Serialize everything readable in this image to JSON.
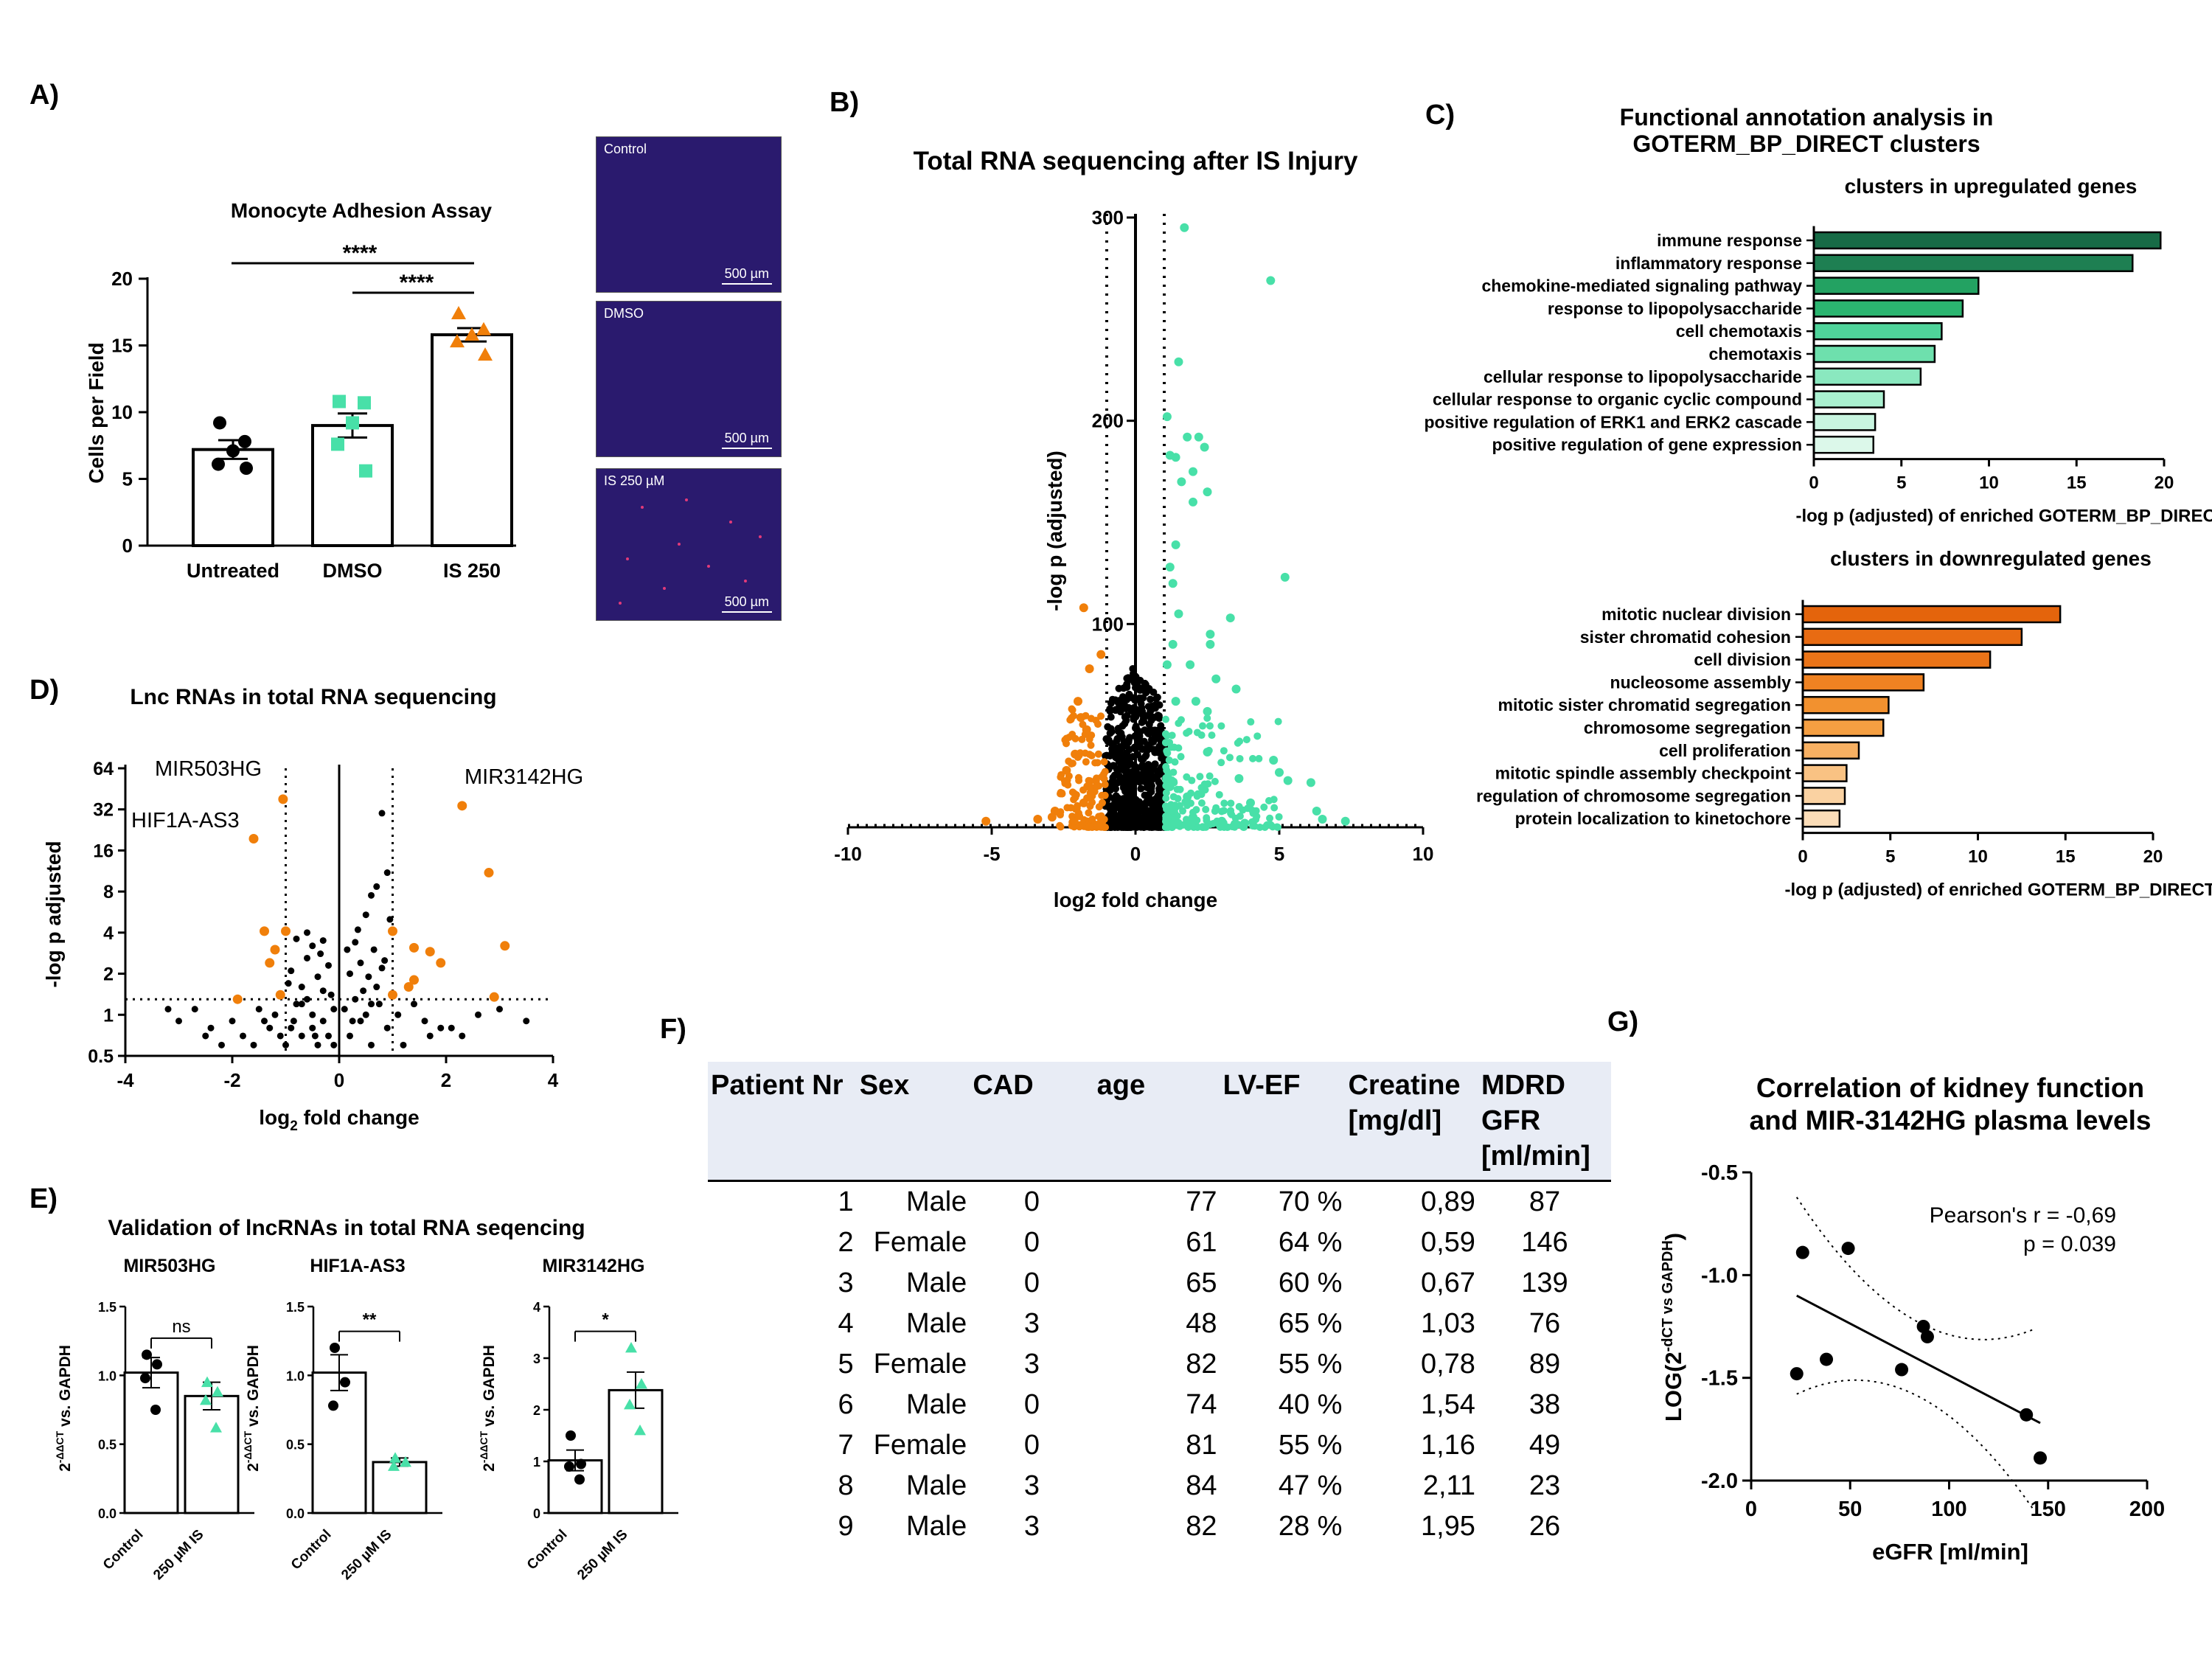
{
  "panel_labels": {
    "a": "A)",
    "b": "B)",
    "c": "C)",
    "d": "D)",
    "e": "E)",
    "f": "F)",
    "g": "G)"
  },
  "colors": {
    "orange": "#f07f0a",
    "teal": "#48e0a8",
    "dark_green": "#176b46"
  },
  "chart_data": [
    {
      "id": "A",
      "type": "bar",
      "title": "Monocyte Adhesion Assay",
      "ylabel": "Cells per Field",
      "ylim": [
        0,
        20
      ],
      "yticks": [
        "0",
        "5",
        "10",
        "15",
        "20"
      ],
      "categories": [
        "Untreated",
        "DMSO",
        "IS 250"
      ],
      "values": [
        7.2,
        9.0,
        15.8
      ],
      "sem": [
        0.7,
        0.9,
        0.5
      ],
      "points": [
        [
          9.2,
          7.8,
          7.1,
          6.1,
          5.8
        ],
        [
          10.8,
          10.7,
          9.2,
          7.6,
          5.6
        ],
        [
          17.4,
          16.2,
          15.8,
          15.3,
          14.3
        ]
      ],
      "significance": [
        "****",
        "****"
      ],
      "images": [
        {
          "label": "Control",
          "scale": "500 µm"
        },
        {
          "label": "DMSO",
          "scale": "500 µm"
        },
        {
          "label": "IS 250 µM",
          "scale": "500 µm"
        }
      ]
    },
    {
      "id": "B",
      "type": "scatter",
      "title": "Total RNA sequencing after  IS Injury",
      "xlabel": "log2 fold change",
      "ylabel": "-log p (adjusted)",
      "xlim": [
        -10,
        10
      ],
      "ylim": [
        0,
        300
      ],
      "xticks": [
        "-10",
        "-5",
        "0",
        "5",
        "10"
      ],
      "yticks": [
        "100",
        "200",
        "300"
      ],
      "teal_points": [
        [
          1.7,
          295
        ],
        [
          4.7,
          269
        ],
        [
          1.5,
          229
        ],
        [
          1.1,
          202
        ],
        [
          1.8,
          192
        ],
        [
          2.2,
          192
        ],
        [
          1.2,
          183
        ],
        [
          1.4,
          182
        ],
        [
          2.4,
          187
        ],
        [
          2.0,
          175
        ],
        [
          2.5,
          165
        ],
        [
          1.6,
          170
        ],
        [
          2.0,
          160
        ],
        [
          1.4,
          139
        ],
        [
          1.2,
          128
        ],
        [
          5.2,
          123
        ],
        [
          1.3,
          120
        ],
        [
          1.5,
          105
        ],
        [
          3.3,
          103
        ],
        [
          2.6,
          95
        ],
        [
          2.6,
          90
        ],
        [
          1.3,
          90
        ],
        [
          1.9,
          80
        ],
        [
          1.1,
          80
        ],
        [
          2.8,
          73
        ],
        [
          3.5,
          68
        ],
        [
          1.4,
          62
        ],
        [
          2.1,
          62
        ],
        [
          2.5,
          57
        ],
        [
          2.5,
          37
        ],
        [
          4.8,
          33
        ],
        [
          5.0,
          27
        ],
        [
          3.6,
          24
        ],
        [
          5.3,
          23
        ],
        [
          6.1,
          22
        ],
        [
          1.2,
          20
        ],
        [
          1.8,
          15
        ],
        [
          4.0,
          12
        ],
        [
          6.3,
          8
        ],
        [
          7.3,
          3
        ],
        [
          6.5,
          4
        ],
        [
          2.0,
          5
        ],
        [
          3.0,
          3
        ],
        [
          3.8,
          2
        ]
      ],
      "orange_points": [
        [
          -1.8,
          108
        ],
        [
          -1.2,
          85
        ],
        [
          -1.6,
          78
        ],
        [
          -2.0,
          62
        ],
        [
          -1.9,
          54
        ],
        [
          -1.7,
          48
        ],
        [
          -2.1,
          36
        ],
        [
          -2.4,
          28
        ],
        [
          -5.2,
          3
        ],
        [
          -2.8,
          8
        ],
        [
          -2.9,
          5
        ],
        [
          -3.4,
          4
        ],
        [
          -1.6,
          20
        ],
        [
          -1.8,
          12
        ]
      ]
    },
    {
      "id": "C-up",
      "type": "bar",
      "title": "Functional annotation analysis in\nGOTERM_BP_DIRECT clusters",
      "subtitle": "clusters in upregulated genes",
      "xlabel": "-log p (adjusted) of enriched GOTERM_BP_DIRECT",
      "xlim": [
        0,
        20
      ],
      "xticks": [
        "0",
        "5",
        "10",
        "15",
        "20"
      ],
      "categories": [
        "immune response",
        "inflammatory response",
        "chemokine-mediated signaling pathway",
        "response to lipopolysaccharide",
        "cell chemotaxis",
        "chemotaxis",
        "cellular response to lipopolysaccharide",
        "cellular response to organic cyclic compound",
        "positive regulation of ERK1 and ERK2 cascade",
        "positive regulation of gene expression"
      ],
      "values": [
        19.8,
        18.2,
        9.4,
        8.5,
        7.3,
        6.9,
        6.1,
        4.0,
        3.5,
        3.4
      ],
      "bar_colors": [
        "#176b46",
        "#1e7f52",
        "#23a262",
        "#2bb570",
        "#4fd39a",
        "#6ee0ad",
        "#8ae8bf",
        "#aaf0d0",
        "#c8f5e0",
        "#dcf8ea"
      ]
    },
    {
      "id": "C-down",
      "type": "bar",
      "subtitle": "clusters in downregulated genes",
      "xlabel": "-log p (adjusted) of enriched GOTERM_BP_DIRECT",
      "xlim": [
        0,
        20
      ],
      "xticks": [
        "0",
        "5",
        "10",
        "15",
        "20"
      ],
      "categories": [
        "mitotic nuclear division",
        "sister chromatid cohesion",
        "cell division",
        "nucleosome assembly",
        "mitotic sister chromatid segregation",
        "chromosome segregation",
        "cell proliferation",
        "mitotic spindle assembly checkpoint",
        "regulation of chromosome segregation",
        "protein localization to kinetochore"
      ],
      "values": [
        14.7,
        12.5,
        10.7,
        6.9,
        4.9,
        4.6,
        3.2,
        2.5,
        2.4,
        2.1
      ],
      "bar_colors": [
        "#e4640c",
        "#e86b12",
        "#ea7418",
        "#ef8222",
        "#f2912f",
        "#f59f42",
        "#f7b062",
        "#f9c283",
        "#fad2a2",
        "#fbddb8"
      ]
    },
    {
      "id": "D",
      "type": "scatter",
      "title": "Lnc RNAs in total RNA sequencing",
      "xlabel": "log2 fold change",
      "ylabel": "-log p adjusted",
      "ylog": true,
      "xlim": [
        -4,
        4
      ],
      "ylim": [
        0.5,
        64
      ],
      "xticks": [
        "-4",
        "-2",
        "0",
        "2",
        "4"
      ],
      "yticks": [
        "0.5",
        "1",
        "2",
        "4",
        "8",
        "16",
        "32",
        "64"
      ],
      "annotations": [
        {
          "text": "MIR503HG",
          "x": -1.05,
          "y": 38
        },
        {
          "text": "HIF1A-AS3",
          "x": -1.6,
          "y": 19.5
        },
        {
          "text": "MIR3142HG",
          "x": 2.3,
          "y": 34
        }
      ],
      "orange_points": [
        [
          -1.05,
          38
        ],
        [
          -1.6,
          19.5
        ],
        [
          -1.4,
          4.1
        ],
        [
          -1.0,
          4.1
        ],
        [
          -1.2,
          3.0
        ],
        [
          -1.3,
          2.4
        ],
        [
          -1.9,
          1.3
        ],
        [
          -1.1,
          1.4
        ],
        [
          1.0,
          4.1
        ],
        [
          1.4,
          3.1
        ],
        [
          1.7,
          2.9
        ],
        [
          1.4,
          1.8
        ],
        [
          1.3,
          1.6
        ],
        [
          1.9,
          2.4
        ],
        [
          2.3,
          34
        ],
        [
          2.8,
          11
        ],
        [
          3.1,
          3.2
        ],
        [
          2.9,
          1.35
        ],
        [
          1.0,
          1.4
        ]
      ],
      "black_points": [
        [
          -3.2,
          1.1
        ],
        [
          -3.0,
          0.9
        ],
        [
          -2.5,
          0.7
        ],
        [
          -2.2,
          0.6
        ],
        [
          -2.0,
          0.9
        ],
        [
          -1.8,
          0.7
        ],
        [
          -1.6,
          0.6
        ],
        [
          -1.4,
          0.9
        ],
        [
          -1.2,
          1.0
        ],
        [
          -1.0,
          0.6
        ],
        [
          -0.9,
          0.8
        ],
        [
          -0.8,
          1.2
        ],
        [
          -0.7,
          1.6
        ],
        [
          -0.6,
          2.6
        ],
        [
          -0.5,
          3.2
        ],
        [
          -0.4,
          1.9
        ],
        [
          -0.3,
          0.9
        ],
        [
          -0.2,
          0.7
        ],
        [
          -0.1,
          1.1
        ],
        [
          -0.9,
          2.1
        ],
        [
          -0.6,
          1.3
        ],
        [
          -0.4,
          0.6
        ],
        [
          -0.8,
          3.6
        ],
        [
          -0.7,
          0.7
        ],
        [
          -0.5,
          0.8
        ],
        [
          -0.3,
          1.5
        ],
        [
          -0.2,
          2.3
        ],
        [
          -0.1,
          0.6
        ],
        [
          -0.95,
          1.7
        ],
        [
          -0.6,
          4.0
        ],
        [
          -0.3,
          3.5
        ],
        [
          -0.5,
          1.0
        ],
        [
          -0.7,
          1.2
        ],
        [
          -0.85,
          0.9
        ],
        [
          -0.15,
          1.4
        ],
        [
          -0.35,
          2.8
        ],
        [
          -0.45,
          0.7
        ],
        [
          0.1,
          1.1
        ],
        [
          0.2,
          2.0
        ],
        [
          0.3,
          3.4
        ],
        [
          0.4,
          0.9
        ],
        [
          0.5,
          5.4
        ],
        [
          0.6,
          7.5
        ],
        [
          0.7,
          8.7
        ],
        [
          0.8,
          30
        ],
        [
          0.9,
          11
        ],
        [
          0.95,
          5.0
        ],
        [
          0.2,
          0.7
        ],
        [
          0.3,
          1.3
        ],
        [
          0.4,
          2.4
        ],
        [
          0.5,
          1.0
        ],
        [
          0.6,
          0.6
        ],
        [
          0.7,
          1.6
        ],
        [
          0.8,
          2.2
        ],
        [
          0.9,
          0.8
        ],
        [
          0.15,
          3.0
        ],
        [
          0.35,
          4.2
        ],
        [
          0.55,
          1.9
        ],
        [
          0.65,
          3.0
        ],
        [
          0.75,
          1.2
        ],
        [
          0.85,
          2.5
        ],
        [
          0.45,
          1.5
        ],
        [
          0.25,
          0.9
        ],
        [
          0.6,
          1.2
        ],
        [
          1.1,
          1.0
        ],
        [
          1.4,
          1.2
        ],
        [
          1.6,
          0.9
        ],
        [
          1.9,
          0.8
        ],
        [
          2.1,
          0.8
        ],
        [
          2.3,
          0.7
        ],
        [
          2.6,
          1.0
        ],
        [
          3.0,
          1.1
        ],
        [
          3.5,
          0.9
        ],
        [
          1.2,
          0.6
        ],
        [
          1.7,
          0.7
        ],
        [
          -2.7,
          1.1
        ],
        [
          -2.4,
          0.8
        ],
        [
          -1.5,
          1.1
        ],
        [
          -1.3,
          0.8
        ],
        [
          -1.1,
          0.7
        ]
      ]
    },
    {
      "id": "E",
      "type": "bar",
      "title": "Validation of lncRNAs in total RNA seqencing",
      "ylabel": "2^-ΔΔCT vs. GAPDH",
      "categories": [
        "Control",
        "250 µM IS"
      ],
      "subcharts": [
        {
          "name": "MIR503HG",
          "ylim": [
            0,
            1.5
          ],
          "yticks": [
            "0.0",
            "0.5",
            "1.0",
            "1.5"
          ],
          "values": [
            1.02,
            0.85
          ],
          "sem": [
            0.11,
            0.1
          ],
          "points": [
            [
              1.15,
              1.08,
              0.98,
              0.75
            ],
            [
              0.95,
              0.88,
              0.82,
              0.62
            ]
          ],
          "significance": "ns"
        },
        {
          "name": "HIF1A-AS3",
          "ylim": [
            0,
            1.5
          ],
          "yticks": [
            "0.0",
            "0.5",
            "1.0",
            "1.5"
          ],
          "values": [
            1.02,
            0.37
          ],
          "sem": [
            0.13,
            0.03
          ],
          "points": [
            [
              1.2,
              0.95,
              0.78
            ],
            [
              0.4,
              0.37,
              0.34
            ]
          ],
          "significance": "**"
        },
        {
          "name": "MIR3142HG",
          "ylim": [
            0,
            4
          ],
          "yticks": [
            "0",
            "1",
            "2",
            "3",
            "4"
          ],
          "values": [
            1.02,
            2.38
          ],
          "sem": [
            0.2,
            0.35
          ],
          "points": [
            [
              1.5,
              0.95,
              0.9,
              0.65
            ],
            [
              3.2,
              2.5,
              2.1,
              1.6
            ]
          ],
          "significance": "*"
        }
      ]
    },
    {
      "id": "G",
      "type": "scatter",
      "title": "Correlation of  kidney function\nand MIR-3142HG plasma levels",
      "xlabel": "eGFR [ml/min]",
      "ylabel": "LOG(2^-dCT vs GAPDH)",
      "xlim": [
        0,
        200
      ],
      "ylim": [
        -2.0,
        -0.5
      ],
      "xticks": [
        "0",
        "50",
        "100",
        "150",
        "200"
      ],
      "yticks": [
        "-0.5",
        "-1.0",
        "-1.5",
        "-2.0"
      ],
      "annotation": "Pearson's r = -0,69",
      "annotation2": "p = 0.039",
      "points": [
        [
          26,
          -0.89
        ],
        [
          49,
          -0.87
        ],
        [
          87,
          -1.25
        ],
        [
          89,
          -1.3
        ],
        [
          76,
          -1.46
        ],
        [
          38,
          -1.41
        ],
        [
          23,
          -1.48
        ],
        [
          139,
          -1.68
        ],
        [
          146,
          -1.89
        ]
      ],
      "regression": {
        "x": [
          23,
          146
        ],
        "y": [
          -1.1,
          -1.72
        ]
      }
    }
  ],
  "table_f": {
    "headers": [
      "Patient Nr",
      "Sex",
      "CAD",
      "age",
      "LV-EF",
      "Creatine [mg/dl]",
      "MDRD GFR [ml/min]"
    ],
    "rows": [
      [
        "1",
        "Male",
        "0",
        "77",
        "70 %",
        "0,89",
        "87"
      ],
      [
        "2",
        "Female",
        "0",
        "61",
        "64 %",
        "0,59",
        "146"
      ],
      [
        "3",
        "Male",
        "0",
        "65",
        "60 %",
        "0,67",
        "139"
      ],
      [
        "4",
        "Male",
        "3",
        "48",
        "65 %",
        "1,03",
        "76"
      ],
      [
        "5",
        "Female",
        "3",
        "82",
        "55 %",
        "0,78",
        "89"
      ],
      [
        "6",
        "Male",
        "0",
        "74",
        "40 %",
        "1,54",
        "38"
      ],
      [
        "7",
        "Female",
        "0",
        "81",
        "55 %",
        "1,16",
        "49"
      ],
      [
        "8",
        "Male",
        "3",
        "84",
        "47 %",
        "2,11",
        "23"
      ],
      [
        "9",
        "Male",
        "3",
        "82",
        "28 %",
        "1,95",
        "26"
      ]
    ]
  }
}
